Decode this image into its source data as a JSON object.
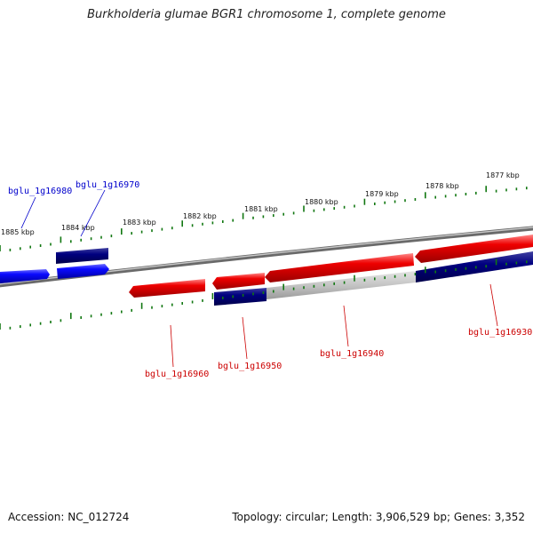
{
  "title": "Burkholderia glumae BGR1 chromosome 1, complete genome",
  "footer": {
    "accession": "Accession: NC_012724",
    "summary": "Topology: circular; Length: 3,906,529 bp; Genes: 3,352"
  },
  "colors": {
    "forward_gene": "#0a0aff",
    "forward_gene_dark": "#000080",
    "reverse_gene": "#ee0000",
    "backbone": "#808080",
    "tick": "#117711",
    "forward_label": "#0000cc",
    "reverse_label": "#cc0000"
  },
  "scale_labels": [
    "1885 kbp",
    "1884 kbp",
    "1883 kbp",
    "1882 kbp",
    "1881 kbp",
    "1880 kbp",
    "1879 kbp",
    "1878 kbp",
    "1877 kbp"
  ],
  "gene_labels": {
    "forward": [
      "bglu_1g16980",
      "bglu_1g16970"
    ],
    "reverse": [
      "bglu_1g16960",
      "bglu_1g16950",
      "bglu_1g16940",
      "bglu_1g16930"
    ]
  }
}
